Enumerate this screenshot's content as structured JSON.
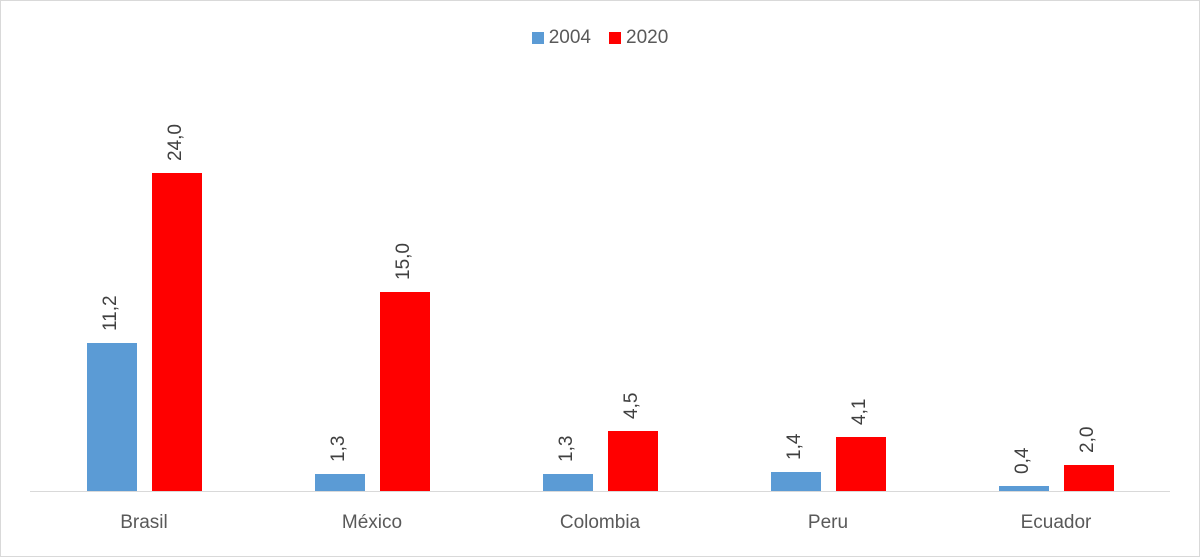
{
  "chart_data": {
    "type": "bar",
    "title": "",
    "xlabel": "",
    "ylabel": "",
    "categories": [
      "Brasil",
      "México",
      "Colombia",
      "Peru",
      "Ecuador"
    ],
    "series": [
      {
        "name": "2004",
        "color": "#5b9bd5",
        "values": [
          11.2,
          1.3,
          1.3,
          1.4,
          0.4
        ],
        "labels": [
          "11,2",
          "1,3",
          "1,3",
          "1,4",
          "0,4"
        ]
      },
      {
        "name": "2020",
        "color": "#ff0000",
        "values": [
          24.0,
          15.0,
          4.5,
          4.1,
          2.0
        ],
        "labels": [
          "24,0",
          "15,0",
          "4,5",
          "4,1",
          "2,0"
        ]
      }
    ],
    "ylim": [
      0,
      25
    ],
    "grid": false,
    "legend_position": "top",
    "axis_visible": false
  },
  "legend": {
    "items": [
      {
        "label": "2004",
        "color": "#5b9bd5"
      },
      {
        "label": "2020",
        "color": "#ff0000"
      }
    ]
  }
}
